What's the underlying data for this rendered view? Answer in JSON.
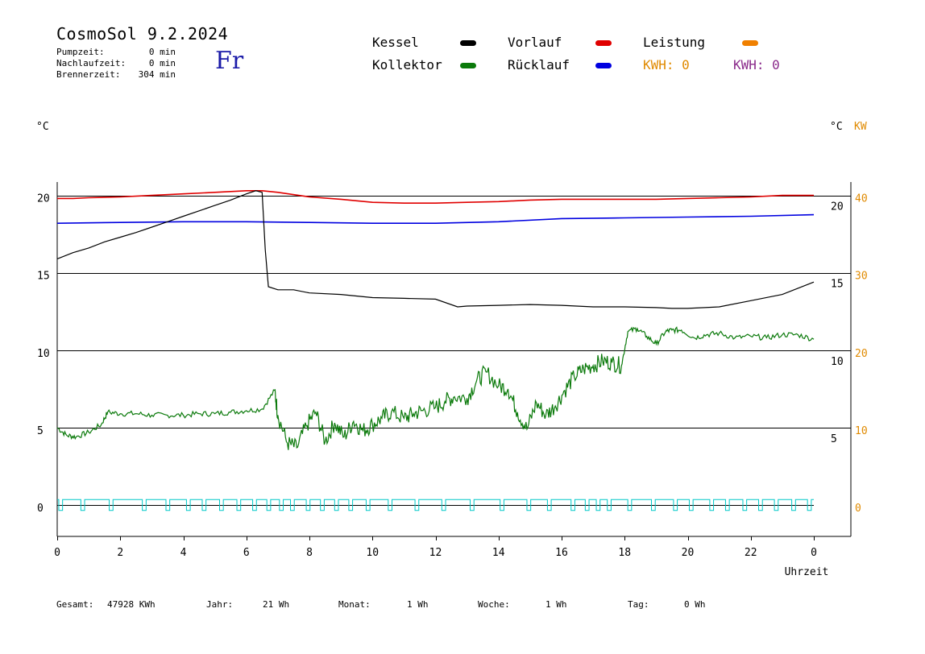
{
  "header": {
    "title": "CosmoSol 9.2.2024",
    "day": "Fr",
    "pumpzeit_label": "Pumpzeit:",
    "pumpzeit_value": "0 min",
    "nachlauf_label": "Nachlaufzeit:",
    "nachlauf_value": "0 min",
    "brenner_label": "Brennerzeit:",
    "brenner_value": "304 min"
  },
  "legend": {
    "kessel": "Kessel",
    "kollektor": "Kollektor",
    "vorlauf": "Vorlauf",
    "ruecklauf": "Rücklauf",
    "leistung": "Leistung",
    "kwh1": "KWH: 0",
    "kwh2": "KWH: 0"
  },
  "units": {
    "left": "°C",
    "right_c": "°C",
    "right_kw": "KW"
  },
  "colors": {
    "kessel": "#000000",
    "kollektor": "#0b7a0b",
    "vorlauf": "#e00000",
    "ruecklauf": "#0000e0",
    "leistung": "#f08000",
    "pumpe": "#00c8c8",
    "kwh2": "#8a2a8a"
  },
  "footer": {
    "gesamt_label": "Gesamt:",
    "gesamt_value": "47928 KWh",
    "jahr_label": "Jahr:",
    "jahr_value": "21 Wh",
    "monat_label": "Monat:",
    "monat_value": "1 Wh",
    "woche_label": "Woche:",
    "woche_value": "1 Wh",
    "tag_label": "Tag:",
    "tag_value": "0 Wh"
  },
  "chart_data": {
    "type": "line",
    "xlabel": "Uhrzeit",
    "x_ticks": [
      "0",
      "2",
      "4",
      "6",
      "8",
      "10",
      "12",
      "14",
      "16",
      "18",
      "20",
      "22",
      "0"
    ],
    "xlim": [
      0,
      24
    ],
    "ylim": [
      -1.5,
      21.5
    ],
    "left_ticks": [
      0,
      5,
      10,
      15,
      20
    ],
    "right_c_ticks": [
      5,
      10,
      15,
      20
    ],
    "right_kw_ticks": [
      0,
      10,
      20,
      30,
      40
    ],
    "series": [
      {
        "name": "Vorlauf",
        "key": "vorlauf",
        "x": [
          0,
          0.5,
          1,
          2,
          3,
          4,
          5,
          6,
          6.5,
          7,
          8,
          9,
          10,
          11,
          12,
          13,
          14,
          15,
          16,
          17,
          18,
          19,
          20,
          21,
          22,
          23,
          24
        ],
        "y": [
          19.8,
          19.8,
          19.85,
          19.9,
          20.0,
          20.1,
          20.2,
          20.3,
          20.3,
          20.2,
          19.9,
          19.75,
          19.55,
          19.5,
          19.5,
          19.55,
          19.6,
          19.7,
          19.75,
          19.75,
          19.75,
          19.75,
          19.8,
          19.85,
          19.9,
          20.0,
          20.0
        ]
      },
      {
        "name": "Rücklauf",
        "key": "ruecklauf",
        "x": [
          0,
          2,
          4,
          6,
          8,
          10,
          12,
          14,
          16,
          18,
          20,
          22,
          24
        ],
        "y": [
          18.2,
          18.25,
          18.3,
          18.3,
          18.25,
          18.2,
          18.2,
          18.3,
          18.5,
          18.55,
          18.6,
          18.65,
          18.75
        ]
      },
      {
        "name": "Kessel",
        "key": "kessel",
        "x": [
          0,
          0.5,
          1,
          1.5,
          2,
          2.5,
          3,
          3.5,
          4,
          4.5,
          5,
          5.5,
          6,
          6.3,
          6.5,
          6.6,
          6.7,
          7,
          7.5,
          8,
          9,
          10,
          11,
          12,
          12.7,
          13,
          14,
          15,
          16,
          17,
          18,
          19,
          19.5,
          20,
          21,
          22,
          23,
          24
        ],
        "y": [
          15.9,
          16.3,
          16.6,
          17.0,
          17.3,
          17.6,
          17.95,
          18.3,
          18.65,
          19.0,
          19.35,
          19.7,
          20.1,
          20.3,
          20.2,
          16.5,
          14.1,
          13.9,
          13.9,
          13.7,
          13.6,
          13.4,
          13.35,
          13.3,
          12.8,
          12.85,
          12.9,
          12.95,
          12.9,
          12.8,
          12.8,
          12.75,
          12.7,
          12.7,
          12.8,
          13.2,
          13.6,
          14.4
        ]
      },
      {
        "name": "Kollektor",
        "key": "kollektor",
        "x": [
          0,
          0.3,
          0.6,
          1.0,
          1.4,
          1.6,
          2.0,
          2.5,
          3.0,
          3.5,
          4.0,
          4.5,
          5.0,
          5.5,
          6.0,
          6.5,
          6.9,
          7.0,
          7.3,
          7.6,
          7.9,
          8.2,
          8.5,
          8.8,
          9.1,
          9.4,
          9.7,
          10.0,
          10.3,
          10.6,
          11.0,
          11.3,
          11.6,
          12.0,
          12.3,
          12.6,
          13.0,
          13.3,
          13.6,
          14.0,
          14.3,
          14.6,
          14.9,
          15.2,
          15.5,
          15.8,
          16.1,
          16.4,
          16.7,
          17.0,
          17.3,
          17.6,
          17.9,
          18.1,
          18.4,
          18.7,
          19.0,
          19.3,
          19.5,
          19.8,
          20.2,
          20.6,
          21.0,
          21.5,
          22.0,
          22.5,
          23.0,
          23.5,
          24.0
        ],
        "y": [
          5.0,
          4.5,
          4.4,
          4.7,
          5.2,
          6.0,
          5.9,
          5.9,
          5.8,
          5.8,
          5.8,
          5.9,
          5.9,
          6.0,
          6.1,
          6.2,
          7.4,
          5.8,
          4.0,
          3.7,
          5.1,
          6.0,
          4.1,
          5.3,
          4.4,
          5.4,
          4.8,
          5.2,
          5.6,
          6.0,
          5.6,
          5.9,
          6.1,
          6.3,
          6.7,
          7.0,
          6.9,
          8.0,
          8.6,
          7.7,
          7.5,
          6.0,
          4.9,
          6.6,
          5.8,
          6.4,
          7.4,
          8.3,
          8.8,
          9.0,
          9.3,
          9.2,
          9.0,
          11.2,
          11.4,
          10.9,
          10.4,
          11.2,
          11.3,
          11.3,
          10.8,
          11.0,
          11.1,
          10.8,
          10.9,
          10.8,
          11.0,
          11.0,
          10.7
        ]
      },
      {
        "name": "Pumpe",
        "key": "pumpe",
        "pulses": [
          0.05,
          0.75,
          1.65,
          2.7,
          3.45,
          4.1,
          4.6,
          5.15,
          5.7,
          6.2,
          6.65,
          7.05,
          7.4,
          7.9,
          8.35,
          8.8,
          9.25,
          9.8,
          10.5,
          11.35,
          12.2,
          13.1,
          14.05,
          14.9,
          15.55,
          16.3,
          16.75,
          17.1,
          17.45,
          18.1,
          18.85,
          19.55,
          20.05,
          20.7,
          21.2,
          21.75,
          22.25,
          22.75,
          23.3,
          23.8
        ],
        "pulse_width": 0.12,
        "on": 0.35,
        "off": -0.35
      }
    ]
  }
}
